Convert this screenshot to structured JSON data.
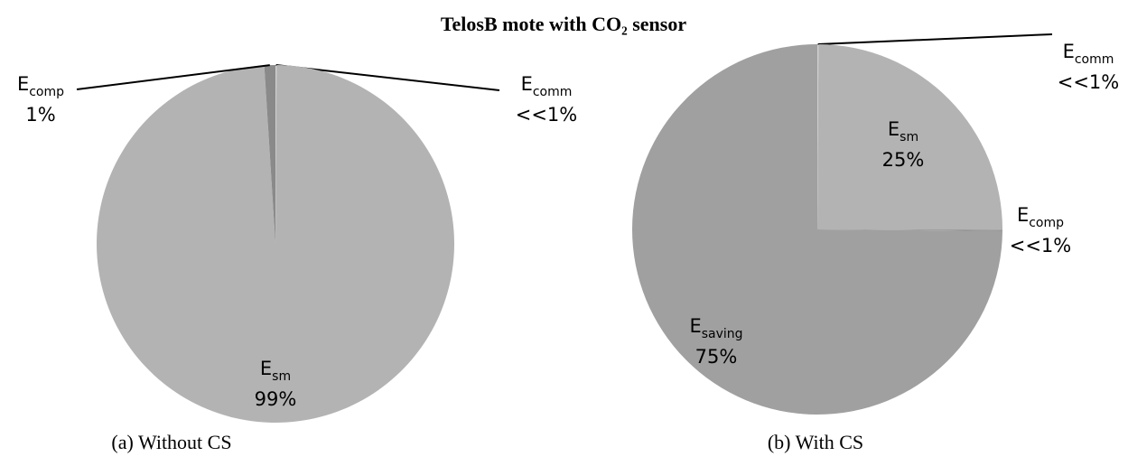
{
  "title": "TelosB mote with CO₂ sensor",
  "chart_data": [
    {
      "type": "pie",
      "caption": "(a)  Without CS",
      "categories": [
        {
          "symbol": "E",
          "subscript": "comm"
        },
        {
          "symbol": "E",
          "subscript": "sm"
        },
        {
          "symbol": "E",
          "subscript": "comp"
        }
      ],
      "values": [
        0.1,
        99,
        1
      ],
      "value_labels": [
        "<<1%",
        "99%",
        "1%"
      ],
      "colors": [
        "#d0d0d0",
        "#b3b3b3",
        "#8a8a8a"
      ]
    },
    {
      "type": "pie",
      "caption": "(b) With CS",
      "categories": [
        {
          "symbol": "E",
          "subscript": "comm"
        },
        {
          "symbol": "E",
          "subscript": "sm"
        },
        {
          "symbol": "E",
          "subscript": "comp"
        },
        {
          "symbol": "E",
          "subscript": "saving"
        }
      ],
      "values": [
        0.1,
        25,
        0.1,
        75
      ],
      "value_labels": [
        "<<1%",
        "25%",
        "<<1%",
        "75%"
      ],
      "colors": [
        "#d0d0d0",
        "#b3b3b3",
        "#8a8a8a",
        "#a0a0a0"
      ]
    }
  ]
}
